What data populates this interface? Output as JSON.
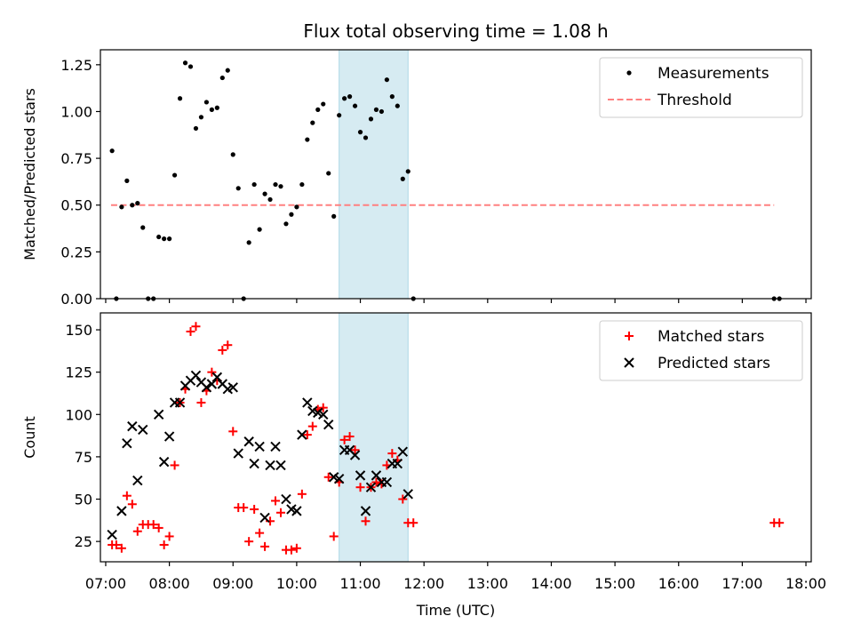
{
  "chart_data": [
    {
      "type": "scatter",
      "title": "Flux total observing time = 1.08 h",
      "ylabel": "Matched/Predicted stars",
      "xlabel": "",
      "ylim": [
        0,
        1.33
      ],
      "xlim": [
        "06:55",
        "18:05"
      ],
      "yticks": [
        0.0,
        0.25,
        0.5,
        0.75,
        1.0,
        1.25
      ],
      "ytick_labels": [
        "0.00",
        "0.25",
        "0.50",
        "0.75",
        "1.00",
        "1.25"
      ],
      "highlight_span": [
        "10:40",
        "11:45"
      ],
      "legend": {
        "placement": "top-right",
        "entries": [
          "Measurements",
          "Threshold"
        ]
      },
      "threshold": {
        "name": "Threshold",
        "value": 0.5,
        "x_start": "07:05",
        "x_end": "17:30",
        "color": "#ff8080"
      },
      "series": [
        {
          "name": "Measurements",
          "color": "#000000",
          "points": [
            [
              "07:06",
              0.79
            ],
            [
              "07:10",
              0.0
            ],
            [
              "07:15",
              0.49
            ],
            [
              "07:20",
              0.63
            ],
            [
              "07:25",
              0.5
            ],
            [
              "07:30",
              0.51
            ],
            [
              "07:35",
              0.38
            ],
            [
              "07:40",
              0.0
            ],
            [
              "07:45",
              0.0
            ],
            [
              "07:50",
              0.33
            ],
            [
              "07:55",
              0.32
            ],
            [
              "08:00",
              0.32
            ],
            [
              "08:05",
              0.66
            ],
            [
              "08:10",
              1.07
            ],
            [
              "08:15",
              1.26
            ],
            [
              "08:20",
              1.24
            ],
            [
              "08:25",
              0.91
            ],
            [
              "08:30",
              0.97
            ],
            [
              "08:35",
              1.05
            ],
            [
              "08:40",
              1.01
            ],
            [
              "08:45",
              1.02
            ],
            [
              "08:50",
              1.18
            ],
            [
              "08:55",
              1.22
            ],
            [
              "09:00",
              0.77
            ],
            [
              "09:05",
              0.59
            ],
            [
              "09:10",
              0.0
            ],
            [
              "09:15",
              0.3
            ],
            [
              "09:20",
              0.61
            ],
            [
              "09:25",
              0.37
            ],
            [
              "09:30",
              0.56
            ],
            [
              "09:35",
              0.53
            ],
            [
              "09:40",
              0.61
            ],
            [
              "09:45",
              0.6
            ],
            [
              "09:50",
              0.4
            ],
            [
              "09:55",
              0.45
            ],
            [
              "10:00",
              0.49
            ],
            [
              "10:05",
              0.61
            ],
            [
              "10:10",
              0.85
            ],
            [
              "10:15",
              0.94
            ],
            [
              "10:20",
              1.01
            ],
            [
              "10:25",
              1.04
            ],
            [
              "10:30",
              0.67
            ],
            [
              "10:35",
              0.44
            ],
            [
              "10:40",
              0.98
            ],
            [
              "10:45",
              1.07
            ],
            [
              "10:50",
              1.08
            ],
            [
              "10:55",
              1.03
            ],
            [
              "11:00",
              0.89
            ],
            [
              "11:05",
              0.86
            ],
            [
              "11:10",
              0.96
            ],
            [
              "11:15",
              1.01
            ],
            [
              "11:20",
              1.0
            ],
            [
              "11:25",
              1.17
            ],
            [
              "11:30",
              1.08
            ],
            [
              "11:35",
              1.03
            ],
            [
              "11:40",
              0.64
            ],
            [
              "11:45",
              0.68
            ],
            [
              "11:50",
              0.0
            ],
            [
              "17:30",
              0.0
            ],
            [
              "17:35",
              0.0
            ]
          ]
        }
      ]
    },
    {
      "type": "scatter",
      "title": "",
      "ylabel": "Count",
      "xlabel": "Time (UTC)",
      "ylim": [
        13,
        160
      ],
      "xlim": [
        "06:55",
        "18:05"
      ],
      "yticks": [
        25,
        50,
        75,
        100,
        125,
        150
      ],
      "ytick_labels": [
        "25",
        "50",
        "75",
        "100",
        "125",
        "150"
      ],
      "xticks": [
        "07:00",
        "08:00",
        "09:00",
        "10:00",
        "11:00",
        "12:00",
        "13:00",
        "14:00",
        "15:00",
        "16:00",
        "17:00",
        "18:00"
      ],
      "highlight_span": [
        "10:40",
        "11:45"
      ],
      "legend": {
        "placement": "top-right",
        "entries": [
          "Matched stars",
          "Predicted stars"
        ]
      },
      "series": [
        {
          "name": "Matched stars",
          "marker": "plus",
          "color": "#ff0000",
          "points": [
            [
              "07:06",
              23
            ],
            [
              "07:10",
              23
            ],
            [
              "07:15",
              21
            ],
            [
              "07:20",
              52
            ],
            [
              "07:25",
              47
            ],
            [
              "07:30",
              31
            ],
            [
              "07:35",
              35
            ],
            [
              "07:40",
              35
            ],
            [
              "07:45",
              35
            ],
            [
              "07:50",
              33
            ],
            [
              "07:55",
              23
            ],
            [
              "08:00",
              28
            ],
            [
              "08:05",
              70
            ],
            [
              "08:10",
              107
            ],
            [
              "08:15",
              115
            ],
            [
              "08:20",
              149
            ],
            [
              "08:25",
              152
            ],
            [
              "08:30",
              107
            ],
            [
              "08:35",
              114
            ],
            [
              "08:40",
              125
            ],
            [
              "08:45",
              120
            ],
            [
              "08:50",
              138
            ],
            [
              "08:55",
              141
            ],
            [
              "09:00",
              90
            ],
            [
              "09:05",
              45
            ],
            [
              "09:10",
              45
            ],
            [
              "09:15",
              25
            ],
            [
              "09:20",
              44
            ],
            [
              "09:25",
              30
            ],
            [
              "09:30",
              22
            ],
            [
              "09:35",
              37
            ],
            [
              "09:40",
              49
            ],
            [
              "09:45",
              42
            ],
            [
              "09:50",
              20
            ],
            [
              "09:55",
              20
            ],
            [
              "10:00",
              21
            ],
            [
              "10:05",
              53
            ],
            [
              "10:10",
              88
            ],
            [
              "10:15",
              93
            ],
            [
              "10:20",
              103
            ],
            [
              "10:25",
              104
            ],
            [
              "10:30",
              63
            ],
            [
              "10:35",
              28
            ],
            [
              "10:40",
              60
            ],
            [
              "10:45",
              85
            ],
            [
              "10:50",
              87
            ],
            [
              "10:55",
              79
            ],
            [
              "11:00",
              57
            ],
            [
              "11:05",
              37
            ],
            [
              "11:10",
              57
            ],
            [
              "11:15",
              60
            ],
            [
              "11:20",
              59
            ],
            [
              "11:25",
              70
            ],
            [
              "11:30",
              77
            ],
            [
              "11:35",
              73
            ],
            [
              "11:40",
              50
            ],
            [
              "11:45",
              36
            ],
            [
              "11:50",
              36
            ],
            [
              "17:30",
              36
            ],
            [
              "17:35",
              36
            ]
          ]
        },
        {
          "name": "Predicted stars",
          "marker": "x",
          "color": "#000000",
          "points": [
            [
              "07:06",
              29
            ],
            [
              "07:15",
              43
            ],
            [
              "07:20",
              83
            ],
            [
              "07:25",
              93
            ],
            [
              "07:35",
              91
            ],
            [
              "07:30",
              61
            ],
            [
              "07:50",
              100
            ],
            [
              "07:55",
              72
            ],
            [
              "08:00",
              87
            ],
            [
              "08:05",
              107
            ],
            [
              "08:10",
              107
            ],
            [
              "08:15",
              117
            ],
            [
              "08:20",
              120
            ],
            [
              "08:25",
              123
            ],
            [
              "08:30",
              119
            ],
            [
              "08:35",
              116
            ],
            [
              "08:40",
              118
            ],
            [
              "08:45",
              122
            ],
            [
              "08:50",
              118
            ],
            [
              "08:55",
              115
            ],
            [
              "09:00",
              116
            ],
            [
              "09:05",
              77
            ],
            [
              "09:15",
              84
            ],
            [
              "09:20",
              71
            ],
            [
              "09:25",
              81
            ],
            [
              "09:30",
              39
            ],
            [
              "09:35",
              70
            ],
            [
              "09:40",
              81
            ],
            [
              "09:45",
              70
            ],
            [
              "09:50",
              50
            ],
            [
              "09:55",
              44
            ],
            [
              "10:00",
              43
            ],
            [
              "10:05",
              88
            ],
            [
              "10:10",
              107
            ],
            [
              "10:15",
              102
            ],
            [
              "10:20",
              101
            ],
            [
              "10:25",
              100
            ],
            [
              "10:30",
              94
            ],
            [
              "10:35",
              63
            ],
            [
              "10:40",
              62
            ],
            [
              "10:45",
              79
            ],
            [
              "10:50",
              79
            ],
            [
              "10:55",
              76
            ],
            [
              "11:00",
              64
            ],
            [
              "11:05",
              43
            ],
            [
              "11:10",
              57
            ],
            [
              "11:15",
              64
            ],
            [
              "11:20",
              60
            ],
            [
              "11:25",
              60
            ],
            [
              "11:30",
              71
            ],
            [
              "11:35",
              71
            ],
            [
              "11:40",
              78
            ],
            [
              "11:45",
              53
            ]
          ]
        }
      ]
    }
  ]
}
